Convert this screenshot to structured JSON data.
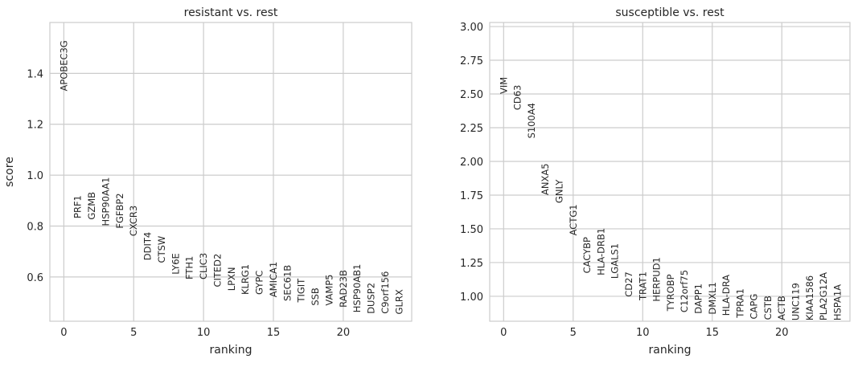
{
  "chart_data": [
    {
      "type": "gene-rank",
      "title": "resistant vs. rest",
      "xlabel": "ranking",
      "ylabel": "score",
      "genes": [
        "APOBEC3G",
        "PRF1",
        "GZMB",
        "HSP90AA1",
        "FGFBP2",
        "CXCR3",
        "DDIT4",
        "CTSW",
        "LY6E",
        "FTH1",
        "CLIC3",
        "CITED2",
        "LPXN",
        "KLRG1",
        "GYPC",
        "AMICA1",
        "SEC61B",
        "TIGIT",
        "SSB",
        "VAMP5",
        "RAD23B",
        "HSP90AB1",
        "DUSP2",
        "C9orf156",
        "GLRX"
      ],
      "values": [
        1.33,
        0.83,
        0.825,
        0.8,
        0.79,
        0.76,
        0.665,
        0.655,
        0.61,
        0.59,
        0.59,
        0.56,
        0.545,
        0.53,
        0.53,
        0.52,
        0.505,
        0.5,
        0.487,
        0.487,
        0.48,
        0.46,
        0.455,
        0.455,
        0.453
      ],
      "xlim": [
        -1,
        24.9
      ],
      "xticks": [
        0,
        5,
        10,
        15,
        20
      ],
      "ylim": [
        0.426,
        1.6
      ],
      "yticks": [
        0.6,
        0.8,
        {
          "value": 1,
          "label": "1.0"
        },
        1.2,
        1.4
      ],
      "grid": true
    },
    {
      "type": "gene-rank",
      "title": "susceptible vs. rest",
      "xlabel": "ranking",
      "genes": [
        "VIM",
        "CD63",
        "S100A4",
        "ANXA5",
        "GNLY",
        "ACTG1",
        "CACYBP",
        "HLA-DRB1",
        "LGALS1",
        "CD27",
        "TRAT1",
        "HERPUD1",
        "TYROBP",
        "C12orf75",
        "DAPP1",
        "DMXL1",
        "HLA-DRA",
        "TPRA1",
        "CAPG",
        "CSTB",
        "ACTB",
        "UNC119",
        "KIAA1586",
        "PLA2G12A",
        "HSPA1A"
      ],
      "values": [
        2.5,
        2.38,
        2.17,
        1.75,
        1.69,
        1.45,
        1.17,
        1.155,
        1.13,
        0.995,
        0.97,
        0.96,
        0.89,
        0.88,
        0.87,
        0.865,
        0.855,
        0.84,
        0.83,
        0.825,
        0.822,
        0.82,
        0.82,
        0.82,
        0.82
      ],
      "xlim": [
        -1,
        24.9
      ],
      "xticks": [
        0,
        5,
        10,
        15,
        20
      ],
      "ylim": [
        0.815,
        3.03
      ],
      "yticks": [
        {
          "value": 1,
          "label": "1.00"
        },
        1.25,
        {
          "value": 1.5,
          "label": "1.50"
        },
        1.75,
        {
          "value": 2,
          "label": "2.00"
        },
        2.25,
        {
          "value": 2.5,
          "label": "2.50"
        },
        2.75,
        {
          "value": 3,
          "label": "3.00"
        }
      ],
      "grid": true
    }
  ]
}
